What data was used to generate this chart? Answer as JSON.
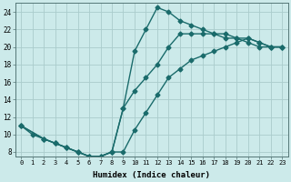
{
  "xlabel": "Humidex (Indice chaleur)",
  "background_color": "#cceaea",
  "grid_color": "#aacccc",
  "line_color": "#1a6b6b",
  "marker": "D",
  "markersize": 2.5,
  "linewidth": 1.0,
  "xlim": [
    -0.5,
    23.5
  ],
  "ylim": [
    7.5,
    25.0
  ],
  "xticks": [
    0,
    1,
    2,
    3,
    4,
    5,
    6,
    7,
    8,
    9,
    10,
    11,
    12,
    13,
    14,
    15,
    16,
    17,
    18,
    19,
    20,
    21,
    22,
    23
  ],
  "yticks": [
    8,
    10,
    12,
    14,
    16,
    18,
    20,
    22,
    24
  ],
  "curve1_x": [
    0,
    1,
    2,
    3,
    4,
    5,
    6,
    7,
    8,
    9,
    10,
    11,
    12,
    13,
    14,
    15,
    16,
    17,
    18,
    19,
    20,
    21,
    22,
    23
  ],
  "curve1_y": [
    11,
    10,
    9.5,
    9.0,
    8.5,
    8.0,
    7.5,
    7.5,
    8.0,
    13.0,
    19.5,
    22.0,
    24.5,
    24.0,
    23.0,
    22.5,
    22.0,
    21.5,
    21.0,
    21.0,
    20.5,
    20.0,
    20.0,
    20.0
  ],
  "curve2_x": [
    0,
    2,
    3,
    4,
    5,
    6,
    7,
    8,
    9,
    10,
    11,
    12,
    13,
    14,
    15,
    16,
    17,
    18,
    19,
    20,
    21,
    22,
    23
  ],
  "curve2_y": [
    11,
    9.5,
    9.0,
    8.5,
    8.0,
    7.5,
    7.5,
    8.0,
    8.0,
    10.5,
    12.5,
    14.5,
    16.5,
    17.5,
    18.5,
    19.0,
    19.5,
    20.0,
    20.5,
    21.0,
    20.5,
    20.0,
    20.0
  ],
  "curve3_x": [
    0,
    2,
    3,
    4,
    5,
    6,
    7,
    8,
    9,
    10,
    11,
    12,
    13,
    14,
    15,
    16,
    17,
    18,
    19,
    20,
    21,
    22,
    23
  ],
  "curve3_y": [
    11,
    9.5,
    9.0,
    8.5,
    8.0,
    7.5,
    7.5,
    8.0,
    13.0,
    15.0,
    16.5,
    18.0,
    20.0,
    21.5,
    21.5,
    21.5,
    21.5,
    21.5,
    21.0,
    21.0,
    20.5,
    20.0,
    20.0
  ]
}
